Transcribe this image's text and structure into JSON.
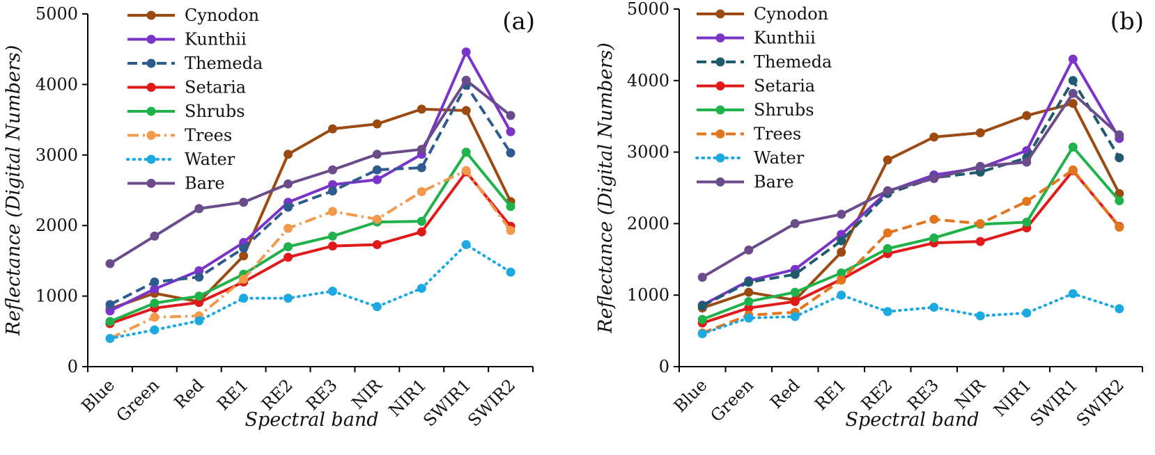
{
  "chart_data": [
    {
      "type": "line",
      "panel_label": "(a)",
      "xlabel": "Spectral band",
      "ylabel": "Reflectance (Digital Numbers)",
      "ylim": [
        0,
        5000
      ],
      "yticks": [
        "0",
        "1000",
        "2000",
        "3000",
        "4000",
        "5000"
      ],
      "categories": [
        "Blue",
        "Green",
        "Red",
        "RE1",
        "RE2",
        "RE3",
        "NIR",
        "NIR1",
        "SWIR1",
        "SWIR2"
      ],
      "legend_position": "top-left",
      "series": [
        {
          "name": "Cynodon",
          "color": "#9B4A12",
          "dash": "solid",
          "values": [
            820,
            1040,
            920,
            1570,
            3010,
            3370,
            3440,
            3650,
            3630,
            2340
          ]
        },
        {
          "name": "Kunthii",
          "color": "#7A35C8",
          "dash": "solid",
          "values": [
            790,
            1100,
            1360,
            1760,
            2330,
            2580,
            2650,
            3010,
            4460,
            3330
          ]
        },
        {
          "name": "Themeda",
          "color": "#2E5B8F",
          "dash": "dashed",
          "values": [
            880,
            1200,
            1270,
            1680,
            2260,
            2490,
            2790,
            2820,
            3990,
            3030
          ]
        },
        {
          "name": "Setaria",
          "color": "#E0191B",
          "dash": "solid",
          "values": [
            610,
            830,
            910,
            1200,
            1550,
            1710,
            1730,
            1910,
            2760,
            1990
          ]
        },
        {
          "name": "Shrubs",
          "color": "#1FB24A",
          "dash": "solid",
          "values": [
            640,
            900,
            1000,
            1310,
            1700,
            1850,
            2050,
            2060,
            3040,
            2270
          ]
        },
        {
          "name": "Trees",
          "color": "#F19A4C",
          "dash": "dashdot",
          "values": [
            400,
            700,
            720,
            1240,
            1960,
            2200,
            2090,
            2480,
            2780,
            1930
          ]
        },
        {
          "name": "Water",
          "color": "#1CA8E0",
          "dash": "dotted",
          "values": [
            400,
            520,
            650,
            970,
            970,
            1070,
            850,
            1110,
            1730,
            1340
          ]
        },
        {
          "name": "Bare",
          "color": "#6A4C8A",
          "dash": "solid",
          "values": [
            1460,
            1850,
            2240,
            2330,
            2590,
            2790,
            3010,
            3080,
            4060,
            3560
          ]
        }
      ]
    },
    {
      "type": "line",
      "panel_label": "(b)",
      "xlabel": "Spectral band",
      "ylabel": "Reflectance (Digital Numbers)",
      "ylim": [
        0,
        5000
      ],
      "yticks": [
        "0",
        "1000",
        "2000",
        "3000",
        "4000",
        "5000"
      ],
      "categories": [
        "Blue",
        "Green",
        "Red",
        "RE1",
        "RE2",
        "RE3",
        "NIR",
        "NIR1",
        "SWIR1",
        "SWIR2"
      ],
      "legend_position": "top-left",
      "series": [
        {
          "name": "Cynodon",
          "color": "#9B4A12",
          "dash": "solid",
          "values": [
            820,
            1040,
            930,
            1600,
            2890,
            3210,
            3270,
            3510,
            3680,
            2420
          ]
        },
        {
          "name": "Kunthii",
          "color": "#7A35C8",
          "dash": "solid",
          "values": [
            860,
            1200,
            1360,
            1850,
            2450,
            2680,
            2780,
            3020,
            4300,
            3190
          ]
        },
        {
          "name": "Themeda",
          "color": "#1F5A6E",
          "dash": "dashed",
          "values": [
            850,
            1180,
            1290,
            1760,
            2420,
            2640,
            2720,
            2920,
            4000,
            2920
          ]
        },
        {
          "name": "Setaria",
          "color": "#E0191B",
          "dash": "solid",
          "values": [
            610,
            820,
            910,
            1220,
            1580,
            1730,
            1750,
            1940,
            2740,
            1960
          ]
        },
        {
          "name": "Shrubs",
          "color": "#1FB24A",
          "dash": "solid",
          "values": [
            660,
            910,
            1040,
            1310,
            1650,
            1800,
            1990,
            2020,
            3070,
            2320
          ]
        },
        {
          "name": "Trees",
          "color": "#E2761E",
          "dash": "dashed",
          "values": [
            470,
            720,
            760,
            1210,
            1870,
            2060,
            2000,
            2310,
            2750,
            1950
          ]
        },
        {
          "name": "Water",
          "color": "#1CA8E0",
          "dash": "dotted",
          "values": [
            460,
            680,
            700,
            1000,
            770,
            830,
            710,
            750,
            1020,
            810
          ]
        },
        {
          "name": "Bare",
          "color": "#6A4C8A",
          "dash": "solid",
          "values": [
            1250,
            1630,
            2000,
            2130,
            2460,
            2630,
            2800,
            2860,
            3820,
            3240
          ]
        }
      ]
    }
  ]
}
